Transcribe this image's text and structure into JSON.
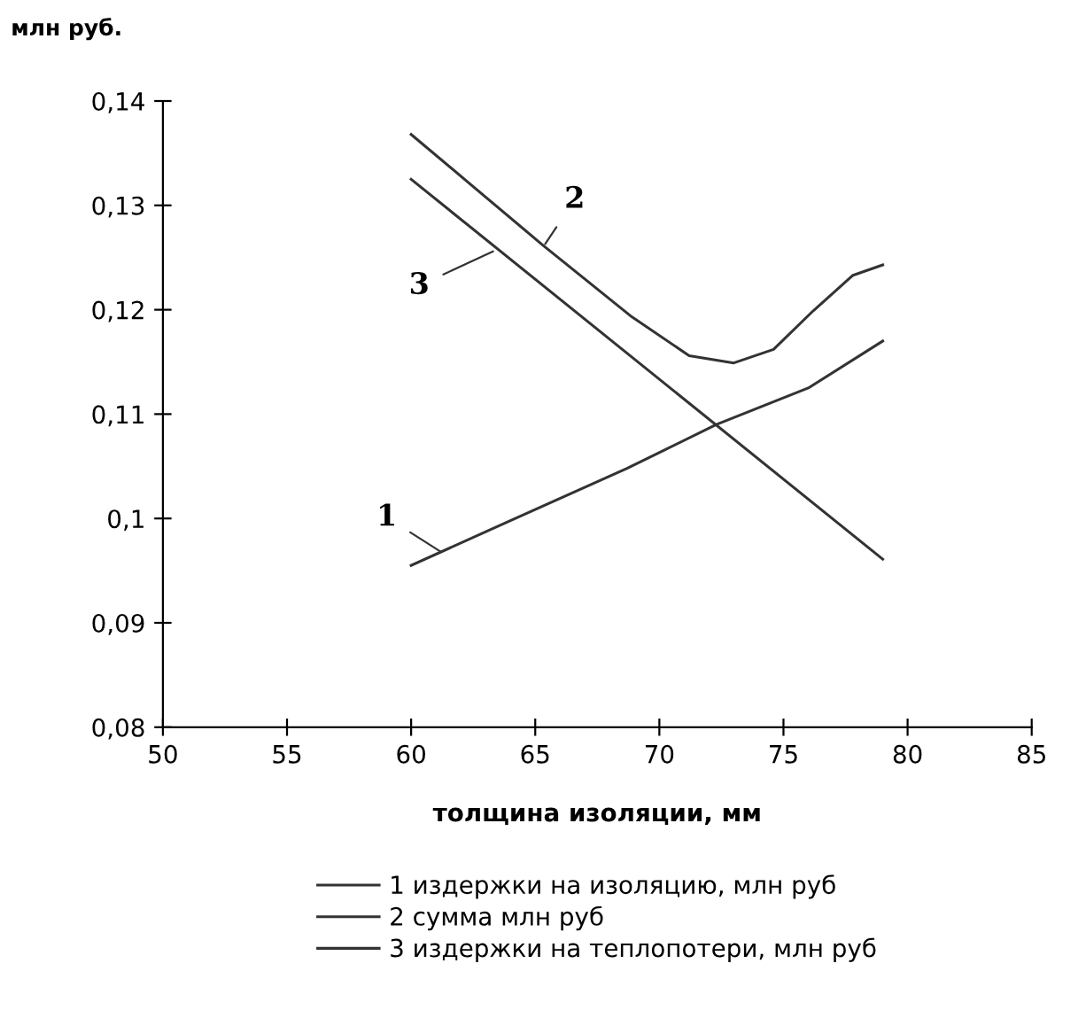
{
  "chart_data": {
    "type": "line",
    "ylabel": "млн руб.",
    "xlabel": "толщина изоляции, мм",
    "xlim": [
      50,
      85
    ],
    "xticks": [
      50,
      55,
      60,
      65,
      70,
      75,
      80,
      85
    ],
    "ylim": [
      0.08,
      0.14
    ],
    "yticks": [
      {
        "value": 0.08,
        "label": "0,08"
      },
      {
        "value": 0.09,
        "label": "0,09"
      },
      {
        "value": 0.1,
        "label": "0,1"
      },
      {
        "value": 0.11,
        "label": "0,11"
      },
      {
        "value": 0.12,
        "label": "0,12"
      },
      {
        "value": 0.13,
        "label": "0,13"
      },
      {
        "value": 0.14,
        "label": "0,14"
      }
    ],
    "grid": false,
    "legend": "bottom",
    "marker": "none",
    "line_style": "solid",
    "series": [
      {
        "name": "1 издержки на изоляцию, млн руб",
        "color": "#333333",
        "x": [
          60,
          64,
          68.7,
          72.3,
          76,
          79
        ],
        "values": [
          0.0955,
          0.0998,
          0.1048,
          0.109,
          0.1125,
          0.117
        ]
      },
      {
        "name": "2 сумма млн руб",
        "color": "#333333",
        "x": [
          60,
          62.5,
          65.3,
          68.9,
          71.2,
          73,
          74.6,
          76.2,
          77.8,
          79
        ],
        "values": [
          0.1368,
          0.1318,
          0.1262,
          0.1193,
          0.1156,
          0.1149,
          0.1162,
          0.1199,
          0.1233,
          0.1243
        ]
      },
      {
        "name": "3 издержки на теплопотери, млн руб",
        "color": "#333333",
        "x": [
          60,
          79
        ],
        "values": [
          0.1325,
          0.0961
        ]
      }
    ],
    "annotations": [
      {
        "text": "1",
        "x": 61.2,
        "y": 0.0968
      },
      {
        "text": "2",
        "x": 65.4,
        "y": 0.1263
      },
      {
        "text": "3",
        "x": 63.3,
        "y": 0.1256
      }
    ]
  }
}
